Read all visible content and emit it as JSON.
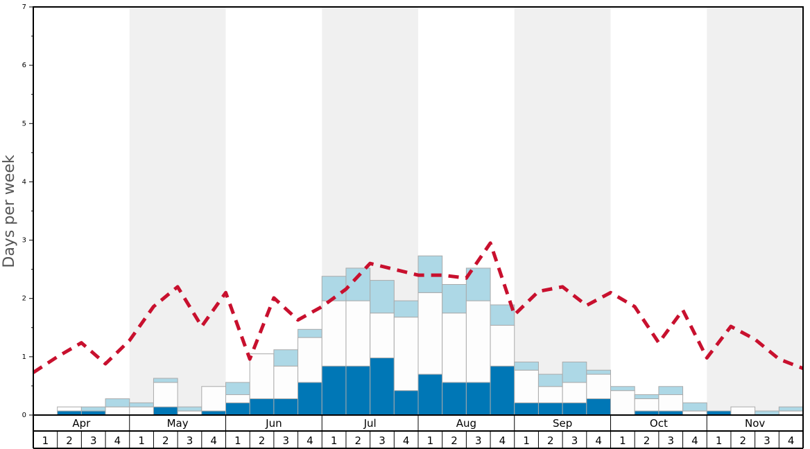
{
  "chart_data": {
    "type": "bar",
    "ylabel": "Days per week",
    "ylim": [
      0,
      7
    ],
    "yticks": [
      0,
      1,
      2,
      3,
      4,
      5,
      6,
      7
    ],
    "months": [
      "Apr",
      "May",
      "Jun",
      "Jul",
      "Aug",
      "Sep",
      "Oct",
      "Nov"
    ],
    "weeks": [
      "1",
      "2",
      "3",
      "4"
    ],
    "colors": {
      "dark": "#0077b6",
      "mid": "#fdfdfd",
      "light": "#add8e6",
      "line": "#c8102e",
      "band": "#f0f0f0",
      "border": "#aaaaaa"
    },
    "series": [
      {
        "name": "dark",
        "values": [
          0,
          0.07,
          0.07,
          0,
          0,
          0.14,
          0,
          0.07,
          0.21,
          0.28,
          0.28,
          0.56,
          0.84,
          0.84,
          0.98,
          0.42,
          0.7,
          0.56,
          0.56,
          0.84,
          0.21,
          0.21,
          0.21,
          0.28,
          0,
          0.07,
          0.07,
          0,
          0.07,
          0,
          0,
          0
        ]
      },
      {
        "name": "mid",
        "values": [
          0,
          0.07,
          0,
          0.14,
          0.14,
          0.42,
          0.07,
          0.42,
          0.14,
          0.77,
          0.56,
          0.77,
          1.12,
          1.12,
          0.77,
          1.26,
          1.4,
          1.19,
          1.4,
          0.7,
          0.56,
          0.28,
          0.35,
          0.42,
          0.42,
          0.21,
          0.28,
          0.07,
          0,
          0.14,
          0,
          0.07
        ]
      },
      {
        "name": "light",
        "values": [
          0,
          0,
          0.07,
          0.14,
          0.07,
          0.07,
          0.07,
          0,
          0.21,
          0,
          0.28,
          0.14,
          0.42,
          0.56,
          0.56,
          0.28,
          0.63,
          0.49,
          0.56,
          0.35,
          0.14,
          0.21,
          0.35,
          0.07,
          0.07,
          0.07,
          0.14,
          0.14,
          0,
          0,
          0.07,
          0.07
        ]
      },
      {
        "name": "line",
        "values": [
          0.73,
          1.0,
          1.24,
          0.88,
          1.28,
          1.86,
          2.2,
          1.52,
          2.1,
          0.96,
          2.01,
          1.63,
          1.86,
          2.16,
          2.6,
          2.5,
          2.4,
          2.4,
          2.35,
          2.95,
          1.72,
          2.12,
          2.2,
          1.88,
          2.1,
          1.86,
          1.24,
          1.8,
          0.98,
          1.52,
          1.3,
          0.96
        ]
      }
    ]
  }
}
